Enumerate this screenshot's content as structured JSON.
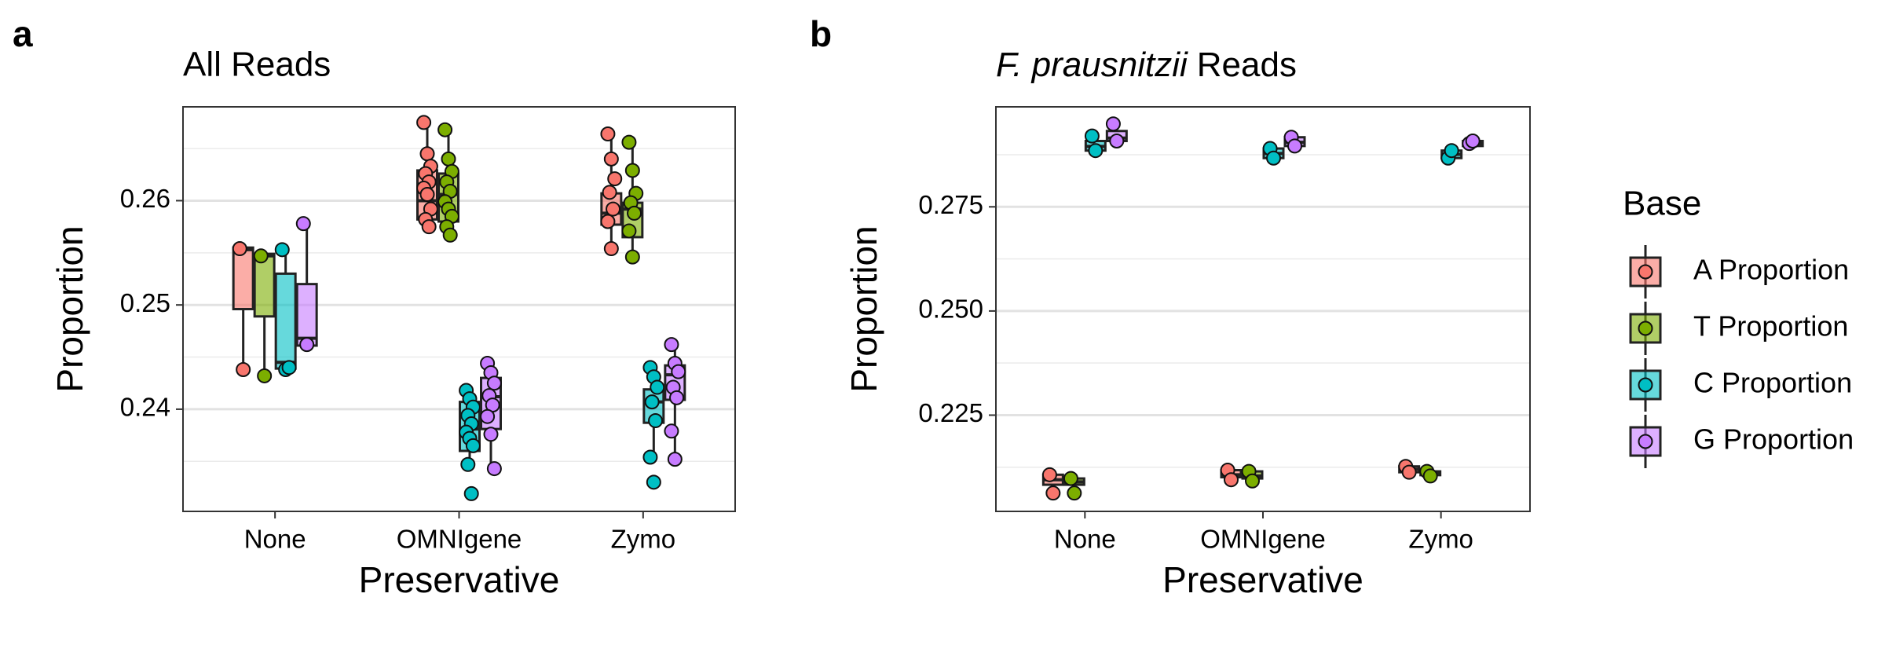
{
  "chart_data": [
    {
      "type": "box",
      "panel_label": "a",
      "title": "All Reads",
      "xlabel": "Preservative",
      "ylabel": "Proportion",
      "categories": [
        "None",
        "OMNIgene",
        "Zymo"
      ],
      "ylim": [
        0.2302,
        0.269
      ],
      "yticks": [
        0.24,
        0.25,
        0.26
      ],
      "minor_yticks": [
        0.235,
        0.245,
        0.255,
        0.265
      ],
      "grid": true,
      "series": [
        {
          "name": "A Proportion",
          "color": "#F8766D",
          "boxes": [
            {
              "low": 0.2438,
              "q1": 0.2496,
              "median": 0.2553,
              "q3": 0.2555,
              "high": 0.2555,
              "points": [
                0.2554,
                0.2438
              ]
            },
            {
              "low": 0.2575,
              "q1": 0.2582,
              "median": 0.26,
              "q3": 0.2629,
              "high": 0.2675,
              "points": [
                0.2675,
                0.2645,
                0.2633,
                0.2626,
                0.2618,
                0.2612,
                0.2606,
                0.2592,
                0.2582,
                0.2575
              ]
            },
            {
              "low": 0.2554,
              "q1": 0.2577,
              "median": 0.2588,
              "q3": 0.2607,
              "high": 0.2664,
              "points": [
                0.2664,
                0.264,
                0.2621,
                0.2608,
                0.2592,
                0.258,
                0.2554
              ]
            }
          ]
        },
        {
          "name": "T Proportion",
          "color": "#7CAE00",
          "boxes": [
            {
              "low": 0.2432,
              "q1": 0.2489,
              "median": 0.2547,
              "q3": 0.2549,
              "high": 0.2549,
              "points": [
                0.2547,
                0.2432
              ]
            },
            {
              "low": 0.2567,
              "q1": 0.258,
              "median": 0.2606,
              "q3": 0.2626,
              "high": 0.2668,
              "points": [
                0.2668,
                0.264,
                0.2628,
                0.2618,
                0.2609,
                0.2599,
                0.2592,
                0.2585,
                0.2575,
                0.2567
              ]
            },
            {
              "low": 0.2546,
              "q1": 0.2565,
              "median": 0.2592,
              "q3": 0.2598,
              "high": 0.2656,
              "points": [
                0.2656,
                0.2629,
                0.2607,
                0.2598,
                0.2588,
                0.2571,
                0.2546
              ]
            }
          ]
        },
        {
          "name": "C Proportion",
          "color": "#00BFC4",
          "boxes": [
            {
              "low": 0.2438,
              "q1": 0.2439,
              "median": 0.2445,
              "q3": 0.253,
              "high": 0.2553,
              "points": [
                0.2553,
                0.2438,
                0.244
              ]
            },
            {
              "low": 0.2346,
              "q1": 0.236,
              "median": 0.2381,
              "q3": 0.2407,
              "high": 0.2421,
              "points": [
                0.2418,
                0.241,
                0.2402,
                0.2394,
                0.2386,
                0.2378,
                0.2372,
                0.2365,
                0.2347,
                0.2319
              ]
            },
            {
              "low": 0.2353,
              "q1": 0.2387,
              "median": 0.2407,
              "q3": 0.2419,
              "high": 0.244,
              "points": [
                0.244,
                0.2431,
                0.2421,
                0.2407,
                0.2389,
                0.2354,
                0.233
              ]
            }
          ]
        },
        {
          "name": "G Proportion",
          "color": "#C77CFF",
          "boxes": [
            {
              "low": 0.2461,
              "q1": 0.2461,
              "median": 0.2468,
              "q3": 0.252,
              "high": 0.2579,
              "points": [
                0.2578,
                0.2462
              ]
            },
            {
              "low": 0.2342,
              "q1": 0.2381,
              "median": 0.2412,
              "q3": 0.243,
              "high": 0.2444,
              "points": [
                0.2444,
                0.2435,
                0.2425,
                0.2413,
                0.2404,
                0.2393,
                0.2376,
                0.2343
              ]
            },
            {
              "low": 0.2352,
              "q1": 0.2409,
              "median": 0.2433,
              "q3": 0.2442,
              "high": 0.2462,
              "points": [
                0.2462,
                0.2444,
                0.2436,
                0.2421,
                0.2411,
                0.2379,
                0.2352
              ]
            }
          ]
        }
      ]
    },
    {
      "type": "box",
      "panel_label": "b",
      "title_parts": [
        {
          "text": "F. prausnitzii",
          "italic": true
        },
        {
          "text": "Reads"
        }
      ],
      "xlabel": "Preservative",
      "ylabel": "Proportion",
      "categories": [
        "None",
        "OMNIgene",
        "Zymo"
      ],
      "ylim": [
        0.2019,
        0.299
      ],
      "yticks": [
        0.225,
        {
          "value": 0.25,
          "label": "0.250"
        },
        0.275
      ],
      "minor_yticks": [
        0.2125,
        0.2375,
        0.2625,
        0.2875
      ],
      "grid": true,
      "legend": {
        "title": "Base",
        "position": "right"
      },
      "series": [
        {
          "name": "A Proportion",
          "color": "#F8766D",
          "boxes": [
            {
              "low": 0.2063,
              "q1": 0.2083,
              "median": 0.2095,
              "q3": 0.2107,
              "high": 0.2107,
              "points": [
                0.2107,
                0.2063
              ]
            },
            {
              "low": 0.2095,
              "q1": 0.2101,
              "median": 0.2107,
              "q3": 0.2118,
              "high": 0.2118,
              "points": [
                0.2118,
                0.2095
              ]
            },
            {
              "low": 0.2113,
              "q1": 0.2113,
              "median": 0.212,
              "q3": 0.2127,
              "high": 0.2127,
              "points": [
                0.2127,
                0.2113
              ]
            }
          ]
        },
        {
          "name": "T Proportion",
          "color": "#7CAE00",
          "boxes": [
            {
              "low": 0.2063,
              "q1": 0.2083,
              "median": 0.209,
              "q3": 0.2098,
              "high": 0.2098,
              "points": [
                0.2098,
                0.2063
              ]
            },
            {
              "low": 0.2092,
              "q1": 0.2098,
              "median": 0.2104,
              "q3": 0.2115,
              "high": 0.2115,
              "points": [
                0.2115,
                0.2092
              ]
            },
            {
              "low": 0.2104,
              "q1": 0.2106,
              "median": 0.211,
              "q3": 0.2115,
              "high": 0.2115,
              "points": [
                0.2115,
                0.2104
              ]
            }
          ]
        },
        {
          "name": "C Proportion",
          "color": "#00BFC4",
          "boxes": [
            {
              "low": 0.2885,
              "q1": 0.2885,
              "median": 0.2895,
              "q3": 0.2908,
              "high": 0.292,
              "points": [
                0.292,
                0.2885
              ]
            },
            {
              "low": 0.2867,
              "q1": 0.2867,
              "median": 0.2878,
              "q3": 0.289,
              "high": 0.289,
              "points": [
                0.289,
                0.2867
              ]
            },
            {
              "low": 0.2867,
              "q1": 0.2867,
              "median": 0.2876,
              "q3": 0.2885,
              "high": 0.2885,
              "points": [
                0.2867,
                0.2885
              ]
            }
          ]
        },
        {
          "name": "G Proportion",
          "color": "#C77CFF",
          "boxes": [
            {
              "low": 0.2908,
              "q1": 0.2908,
              "median": 0.2915,
              "q3": 0.2932,
              "high": 0.2949,
              "points": [
                0.2949,
                0.2908
              ]
            },
            {
              "low": 0.2896,
              "q1": 0.2896,
              "median": 0.2905,
              "q3": 0.2917,
              "high": 0.2917,
              "points": [
                0.2917,
                0.2896
              ]
            },
            {
              "low": 0.2896,
              "q1": 0.2896,
              "median": 0.2902,
              "q3": 0.2908,
              "high": 0.2908,
              "points": [
                0.2902,
                0.2908
              ]
            }
          ]
        }
      ]
    }
  ]
}
